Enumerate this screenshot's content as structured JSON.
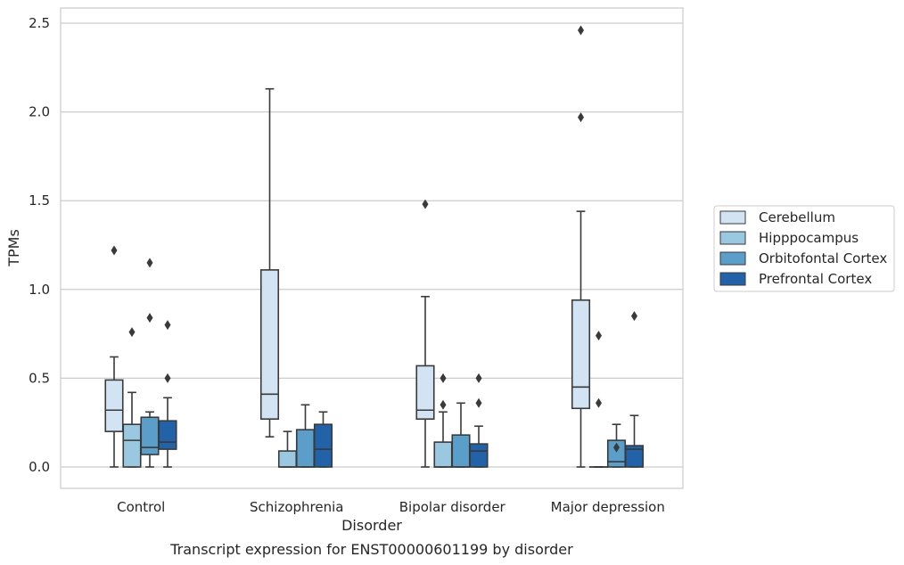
{
  "chart_data": {
    "type": "box",
    "caption": "Transcript expression for ENST00000601199 by disorder",
    "xlabel": "Disorder",
    "ylabel": "TPMs",
    "ylim": [
      -0.12,
      2.59
    ],
    "yticks": [
      "0.0",
      "0.5",
      "1.0",
      "1.5",
      "2.0",
      "2.5"
    ],
    "grid": true,
    "legend_position": "right",
    "categories": [
      "Control",
      "Schizophrenia",
      "Bipolar disorder",
      "Major depression"
    ],
    "series": [
      {
        "name": "Cerebellum",
        "color": "#d2e3f3",
        "boxes": [
          {
            "q1": 0.2,
            "median": 0.32,
            "q3": 0.49,
            "whisker_low": 0.0,
            "whisker_high": 0.62,
            "outliers": [
              1.22
            ]
          },
          {
            "q1": 0.27,
            "median": 0.41,
            "q3": 1.11,
            "whisker_low": 0.17,
            "whisker_high": 2.13,
            "outliers": []
          },
          {
            "q1": 0.27,
            "median": 0.32,
            "q3": 0.57,
            "whisker_low": 0.0,
            "whisker_high": 0.96,
            "outliers": [
              1.48
            ]
          },
          {
            "q1": 0.33,
            "median": 0.45,
            "q3": 0.94,
            "whisker_low": 0.0,
            "whisker_high": 1.44,
            "outliers": [
              1.97,
              2.46
            ]
          }
        ]
      },
      {
        "name": "Hipppocampus",
        "color": "#9ac8e0",
        "boxes": [
          {
            "q1": 0.0,
            "median": 0.15,
            "q3": 0.24,
            "whisker_low": 0.0,
            "whisker_high": 0.42,
            "outliers": [
              0.76
            ]
          },
          {
            "q1": 0.0,
            "median": 0.0,
            "q3": 0.09,
            "whisker_low": 0.0,
            "whisker_high": 0.2,
            "outliers": []
          },
          {
            "q1": 0.0,
            "median": 0.0,
            "q3": 0.14,
            "whisker_low": 0.0,
            "whisker_high": 0.31,
            "outliers": [
              0.35,
              0.5
            ]
          },
          {
            "q1": 0.0,
            "median": 0.0,
            "q3": 0.0,
            "whisker_low": 0.0,
            "whisker_high": 0.0,
            "outliers": [
              0.36,
              0.74
            ]
          }
        ]
      },
      {
        "name": "Orbitofontal Cortex",
        "color": "#5a9ec9",
        "boxes": [
          {
            "q1": 0.07,
            "median": 0.11,
            "q3": 0.28,
            "whisker_low": 0.0,
            "whisker_high": 0.31,
            "outliers": [
              0.84,
              1.15
            ]
          },
          {
            "q1": 0.0,
            "median": 0.0,
            "q3": 0.21,
            "whisker_low": 0.0,
            "whisker_high": 0.35,
            "outliers": []
          },
          {
            "q1": 0.0,
            "median": 0.0,
            "q3": 0.18,
            "whisker_low": 0.0,
            "whisker_high": 0.36,
            "outliers": []
          },
          {
            "q1": 0.0,
            "median": 0.03,
            "q3": 0.15,
            "whisker_low": 0.0,
            "whisker_high": 0.24,
            "outliers": [
              0.11
            ]
          }
        ]
      },
      {
        "name": "Prefrontal Cortex",
        "color": "#2162a8",
        "boxes": [
          {
            "q1": 0.1,
            "median": 0.14,
            "q3": 0.26,
            "whisker_low": 0.0,
            "whisker_high": 0.39,
            "outliers": [
              0.5,
              0.8
            ]
          },
          {
            "q1": 0.0,
            "median": 0.1,
            "q3": 0.24,
            "whisker_low": 0.0,
            "whisker_high": 0.31,
            "outliers": []
          },
          {
            "q1": 0.0,
            "median": 0.09,
            "q3": 0.13,
            "whisker_low": 0.0,
            "whisker_high": 0.23,
            "outliers": [
              0.36,
              0.5
            ]
          },
          {
            "q1": 0.0,
            "median": 0.1,
            "q3": 0.12,
            "whisker_low": 0.0,
            "whisker_high": 0.29,
            "outliers": [
              0.85
            ]
          }
        ]
      }
    ]
  }
}
